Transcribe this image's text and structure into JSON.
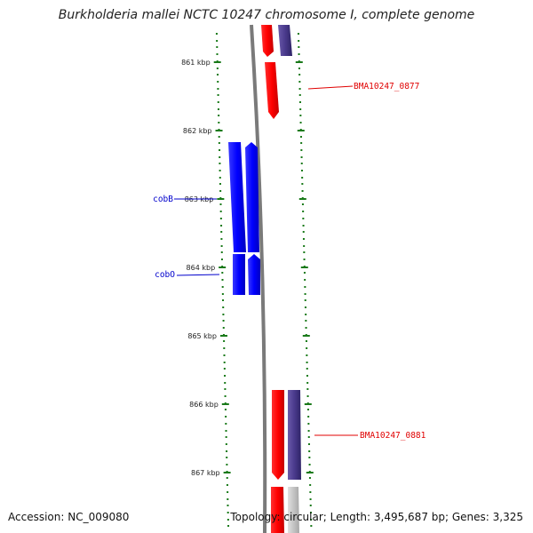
{
  "map": {
    "title": "Burkholderia mallei NCTC 10247 chromosome I, complete genome",
    "accession": "Accession: NC_009080",
    "topology": "Topology: circular; Length: 3,495,687 bp; Genes: 3,325"
  },
  "ticks": [
    {
      "label": "861 kbp",
      "kbp": 861
    },
    {
      "label": "862 kbp",
      "kbp": 862
    },
    {
      "label": "863 kbp",
      "kbp": 863
    },
    {
      "label": "864 kbp",
      "kbp": 864
    },
    {
      "label": "865 kbp",
      "kbp": 865
    },
    {
      "label": "866 kbp",
      "kbp": 866
    },
    {
      "label": "867 kbp",
      "kbp": 867
    }
  ],
  "gene_labels": [
    {
      "name": "BMA10247_0877",
      "color": "#e00000"
    },
    {
      "name": "cobB",
      "color": "#0000cc"
    },
    {
      "name": "cobO",
      "color": "#0000cc"
    },
    {
      "name": "BMA10247_0881",
      "color": "#e00000"
    }
  ],
  "colors": {
    "cds": "#ff0000",
    "gene_forward": "#0000ff",
    "gene_reverse": "#4a3a8c",
    "backbone": "#808080",
    "tick": "#1a7a1a",
    "label_red": "#e00000",
    "label_blue": "#0000cc"
  }
}
